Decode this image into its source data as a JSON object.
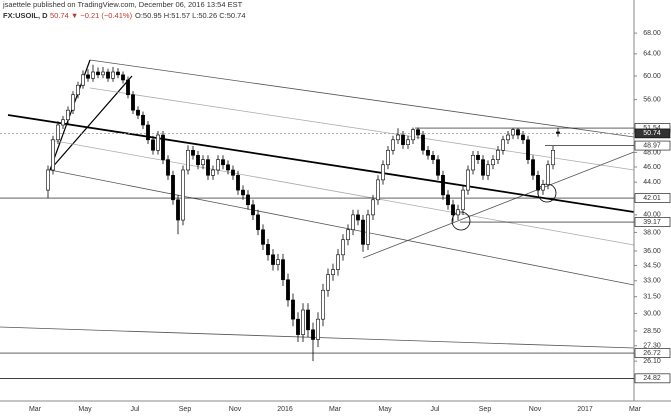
{
  "header": {
    "publisher": "jsaettele published on TradingView.com, December 06, 2016 13:54 EST",
    "symbol": "FX:USOIL, D",
    "change": "50.74 ▼ −0.21 (−0.41%)",
    "ohlc": "O:50.95 H:51.57 L:50.26 C:50.74"
  },
  "chart_data": {
    "type": "candlestick",
    "log_scale": true,
    "up_color": "#ffffff",
    "down_color": "#000000",
    "edge_color": "#000000",
    "ylim": [
      23.3,
      74.9
    ],
    "yticks": [
      {
        "value": 68,
        "label": "68.00"
      },
      {
        "value": 64,
        "label": "64.00"
      },
      {
        "value": 60,
        "label": "60.00"
      },
      {
        "value": 56,
        "label": "56.00"
      },
      {
        "value": 48,
        "label": "48.00"
      },
      {
        "value": 46,
        "label": "46.00"
      },
      {
        "value": 44,
        "label": "44.00"
      },
      {
        "value": 40,
        "label": "40.00"
      },
      {
        "value": 38,
        "label": "38.00"
      },
      {
        "value": 36,
        "label": "36.00"
      },
      {
        "value": 34.5,
        "label": "34.50"
      },
      {
        "value": 33,
        "label": "33.00"
      },
      {
        "value": 31.5,
        "label": "31.50"
      },
      {
        "value": 30,
        "label": "30.00"
      },
      {
        "value": 28.5,
        "label": "28.50"
      },
      {
        "value": 27.3,
        "label": "27.30"
      },
      {
        "value": 26.1,
        "label": "26.10"
      }
    ],
    "xticks": [
      "Mar",
      "May",
      "Jul",
      "Sep",
      "Nov",
      "2016",
      "Mar",
      "May",
      "Jul",
      "Sep",
      "Nov",
      "2017",
      "Mar"
    ],
    "open": [
      43.0,
      45.6,
      49.8,
      52.0,
      52.8,
      54.3,
      56.8,
      58.4,
      60.2,
      59.6,
      60.7,
      60.2,
      60.7,
      59.6,
      60.7,
      60.2,
      59.3,
      56.8,
      54.3,
      53.5,
      52.0,
      49.8,
      48.3,
      50.5,
      47.0,
      44.9,
      41.8,
      39.4,
      45.6,
      48.3,
      47.6,
      46.3,
      47.0,
      44.9,
      45.6,
      47.0,
      46.3,
      45.6,
      44.9,
      43.0,
      42.4,
      41.2,
      40.0,
      38.3,
      36.7,
      35.6,
      34.6,
      35.1,
      33.1,
      31.2,
      29.5,
      28.2,
      30.3,
      28.6,
      27.8,
      29.5,
      32.1,
      33.6,
      34.1,
      35.6,
      37.2,
      38.3,
      40.0,
      39.4,
      36.7,
      40.0,
      41.8,
      44.3,
      46.3,
      48.3,
      49.8,
      50.5,
      49.1,
      49.8,
      51.3,
      50.5,
      48.3,
      47.6,
      47.0,
      44.9,
      42.4,
      41.2,
      40.0,
      40.6,
      43.0,
      45.6,
      47.6,
      47.0,
      44.9,
      46.3,
      47.0,
      48.3,
      49.8,
      50.5,
      51.3,
      50.5,
      49.8,
      47.0,
      44.9,
      43.0,
      43.7,
      46.3,
      50.95
    ],
    "high": [
      46.2,
      50.4,
      52.6,
      53.4,
      54.9,
      57.4,
      59.0,
      61.0,
      61.2,
      62.0,
      61.5,
      61.6,
      61.3,
      61.6,
      61.4,
      60.8,
      59.9,
      57.4,
      54.9,
      54.1,
      52.6,
      50.4,
      51.1,
      51.1,
      47.6,
      45.5,
      42.4,
      46.2,
      49.0,
      48.9,
      48.2,
      47.6,
      47.6,
      46.2,
      47.6,
      47.6,
      46.9,
      46.2,
      45.5,
      43.6,
      43.0,
      41.8,
      40.6,
      38.9,
      37.3,
      36.2,
      35.7,
      35.7,
      33.7,
      31.8,
      30.1,
      30.9,
      30.9,
      29.2,
      30.1,
      32.7,
      34.2,
      34.7,
      36.2,
      37.8,
      38.9,
      40.6,
      40.6,
      40.0,
      40.6,
      42.4,
      44.9,
      46.9,
      48.9,
      50.4,
      51.5,
      51.1,
      50.4,
      51.6,
      51.6,
      51.1,
      48.9,
      48.2,
      47.6,
      45.5,
      43.0,
      41.8,
      41.2,
      43.6,
      46.2,
      48.2,
      48.2,
      47.6,
      46.9,
      47.6,
      48.9,
      50.4,
      51.1,
      51.5,
      51.5,
      51.1,
      50.4,
      47.6,
      45.5,
      44.3,
      46.9,
      48.9,
      51.57
    ],
    "low": [
      42.0,
      45.0,
      49.2,
      51.4,
      52.2,
      53.7,
      56.2,
      57.8,
      59.0,
      59.0,
      59.6,
      59.6,
      59.0,
      59.0,
      59.6,
      58.7,
      56.2,
      53.7,
      52.9,
      51.4,
      49.2,
      47.7,
      47.7,
      46.4,
      44.3,
      41.2,
      37.8,
      38.8,
      45.0,
      47.0,
      45.7,
      45.7,
      44.3,
      44.3,
      45.0,
      45.7,
      45.0,
      44.3,
      42.4,
      41.8,
      40.6,
      39.4,
      37.7,
      36.1,
      35.0,
      34.0,
      34.0,
      32.5,
      30.6,
      28.9,
      27.6,
      27.6,
      28.0,
      26.1,
      27.2,
      28.9,
      31.5,
      33.0,
      33.5,
      35.0,
      36.6,
      37.7,
      38.8,
      35.9,
      36.1,
      39.4,
      41.2,
      43.7,
      45.7,
      47.7,
      49.2,
      48.5,
      48.5,
      49.2,
      49.9,
      47.7,
      47.0,
      46.4,
      44.3,
      41.8,
      40.6,
      39.2,
      39.4,
      40.0,
      42.4,
      45.0,
      46.4,
      44.3,
      44.3,
      45.7,
      46.4,
      47.7,
      49.2,
      49.9,
      49.9,
      49.2,
      46.4,
      44.3,
      42.4,
      42.4,
      43.1,
      45.7,
      50.26
    ],
    "close": [
      45.6,
      49.8,
      52.0,
      52.8,
      54.3,
      56.8,
      58.4,
      60.2,
      59.6,
      60.7,
      60.2,
      60.7,
      59.6,
      60.7,
      60.2,
      59.3,
      56.8,
      54.3,
      53.5,
      52.0,
      49.8,
      48.3,
      50.5,
      47.0,
      44.9,
      41.8,
      39.4,
      45.6,
      48.3,
      47.6,
      46.3,
      47.0,
      44.9,
      45.6,
      47.0,
      46.3,
      45.6,
      44.9,
      43.0,
      42.4,
      41.2,
      40.0,
      38.3,
      36.7,
      35.6,
      34.6,
      35.1,
      33.1,
      31.2,
      29.5,
      28.2,
      30.3,
      28.6,
      27.8,
      29.5,
      32.1,
      33.6,
      34.1,
      35.6,
      37.2,
      38.3,
      40.0,
      39.4,
      36.7,
      40.0,
      41.8,
      44.3,
      46.3,
      48.3,
      49.8,
      50.5,
      49.1,
      49.8,
      51.3,
      50.5,
      48.3,
      47.6,
      47.0,
      44.9,
      42.4,
      41.2,
      40.0,
      40.6,
      43.0,
      45.6,
      47.6,
      47.0,
      44.9,
      46.3,
      47.0,
      48.3,
      49.8,
      50.5,
      51.3,
      50.5,
      49.8,
      47.0,
      44.9,
      43.0,
      43.7,
      46.3,
      48.3,
      50.74
    ],
    "price_lines": [
      {
        "value": 51.54,
        "label": "51.54"
      },
      {
        "value": 50.74,
        "label": "50.74"
      },
      {
        "value": 48.97,
        "label": "48.97"
      },
      {
        "value": 42.01,
        "label": "42.01"
      },
      {
        "value": 39.17,
        "label": "39.17"
      },
      {
        "value": 26.72,
        "label": "26.72"
      },
      {
        "value": 24.82,
        "label": "24.82"
      }
    ]
  }
}
